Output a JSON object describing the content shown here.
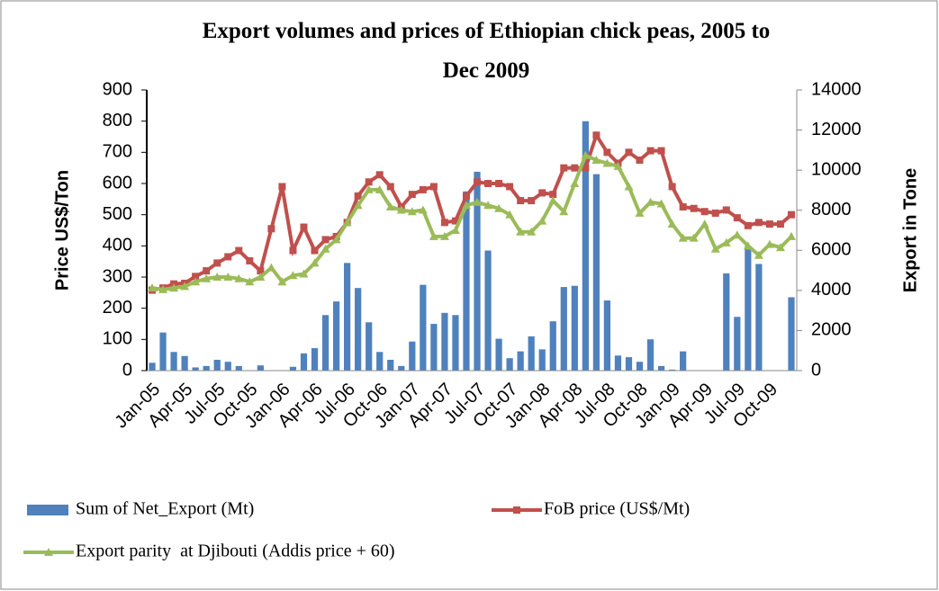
{
  "chart_data": {
    "type": "bar_line",
    "title": "Export volumes and prices of Ethiopian chick peas, 2005 to Dec 2009",
    "ylabel": "Price US$/Ton",
    "y2label": "Export in Tone",
    "categories": [
      "Jan-05",
      null,
      null,
      "Apr-05",
      null,
      null,
      "Jul-05",
      null,
      null,
      "Oct-05",
      null,
      null,
      "Jan-06",
      null,
      null,
      "Apr-06",
      null,
      null,
      "Jul-06",
      null,
      null,
      "Oct-06",
      null,
      null,
      "Jan-07",
      null,
      null,
      "Apr-07",
      null,
      null,
      "Jul-07",
      null,
      null,
      "Oct-07",
      null,
      null,
      "Jan-08",
      null,
      null,
      "Apr-08",
      null,
      null,
      "Jul-08",
      null,
      null,
      "Oct-08",
      null,
      null,
      "Jan-09",
      null,
      null,
      "Apr-09",
      null,
      null,
      "Jul-09",
      null,
      null,
      "Oct-09",
      null,
      null
    ],
    "ylim": [
      0,
      900
    ],
    "yticks": [
      0,
      100,
      200,
      300,
      400,
      500,
      600,
      700,
      800,
      900
    ],
    "y2lim": [
      0,
      14000
    ],
    "y2ticks": [
      0,
      2000,
      4000,
      6000,
      8000,
      10000,
      12000,
      14000
    ],
    "series": [
      {
        "name": "Sum of Net_Export (Mt)",
        "type": "bar",
        "axis": "y2",
        "color": "#4f81bd",
        "values": [
          390,
          1900,
          930,
          730,
          160,
          230,
          540,
          440,
          230,
          0,
          260,
          0,
          0,
          190,
          860,
          1120,
          2770,
          3450,
          5370,
          4120,
          2410,
          930,
          540,
          230,
          1450,
          4280,
          2330,
          2880,
          2770,
          8940,
          9920,
          5990,
          1590,
          620,
          960,
          1710,
          1060,
          2460,
          4170,
          4230,
          12440,
          9800,
          3500,
          750,
          670,
          440,
          1560,
          230,
          50,
          960,
          0,
          0,
          0,
          4850,
          2680,
          6220,
          5320,
          0,
          0,
          3660
        ]
      },
      {
        "name": "FoB price (US$/Mt)",
        "type": "line",
        "color": "#c0504d",
        "marker": "square",
        "values": [
          258,
          265,
          278,
          280,
          302,
          320,
          345,
          365,
          385,
          352,
          320,
          455,
          590,
          385,
          460,
          385,
          420,
          430,
          475,
          560,
          605,
          628,
          590,
          525,
          565,
          580,
          590,
          475,
          480,
          560,
          605,
          600,
          600,
          590,
          545,
          545,
          570,
          565,
          650,
          650,
          650,
          755,
          700,
          665,
          700,
          675,
          705,
          705,
          590,
          525,
          520,
          510,
          505,
          515,
          490,
          465,
          475,
          470,
          470,
          500
        ]
      },
      {
        "name": "Export parity  at Djibouti (Addis price + 60)",
        "type": "line",
        "color": "#9bbb59",
        "marker": "triangle",
        "values": [
          265,
          260,
          265,
          270,
          285,
          295,
          300,
          300,
          295,
          285,
          300,
          330,
          285,
          305,
          310,
          345,
          390,
          420,
          475,
          530,
          580,
          580,
          525,
          515,
          510,
          515,
          430,
          430,
          450,
          530,
          540,
          530,
          520,
          500,
          445,
          445,
          480,
          545,
          510,
          600,
          690,
          675,
          665,
          655,
          590,
          505,
          540,
          535,
          470,
          425,
          425,
          470,
          390,
          410,
          435,
          400,
          370,
          405,
          395,
          430
        ]
      }
    ]
  }
}
